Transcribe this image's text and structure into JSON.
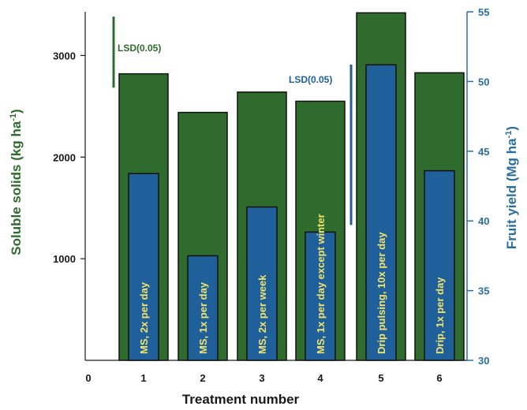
{
  "chart_data": {
    "type": "bar",
    "xlabel": "Treatment number",
    "ylabel_left": "Soluble solids (kg ha-1)",
    "ylabel_right": "Fruit yield (Mg ha-1)",
    "x_ticks": [
      "0",
      "1",
      "2",
      "3",
      "4",
      "5",
      "6"
    ],
    "left_ticks": [
      1000,
      2000,
      3000
    ],
    "right_ticks": [
      30,
      35,
      40,
      45,
      50,
      55
    ],
    "ylim_left": [
      0,
      3430
    ],
    "ylim_right": [
      30,
      55
    ],
    "categories": [
      "1",
      "2",
      "3",
      "4",
      "5",
      "6"
    ],
    "series": [
      {
        "name": "Soluble solids",
        "axis": "left",
        "values": [
          2820,
          2440,
          2640,
          2550,
          3420,
          2830
        ]
      },
      {
        "name": "Fruit yield",
        "axis": "right",
        "values": [
          43.4,
          37.5,
          41.0,
          39.2,
          51.2,
          43.6
        ]
      }
    ],
    "bar_labels": [
      "MS, 2x per day",
      "MS, 1x per day",
      "MS, 2x per week",
      "MS, 1x per day except winter",
      "Drip pulsing, 10x per day",
      "Drip, 1x per day"
    ],
    "lsd": [
      {
        "label": "LSD(0.05)",
        "axis": "left",
        "value": 700
      },
      {
        "label": "LSD(0.05)",
        "axis": "right",
        "value": 11.5
      }
    ],
    "colors": {
      "green_bar": "#2e6b2c",
      "blue_bar": "#1f5f9a",
      "bar_outline": "#111111",
      "right_axis": "#2a6f9e",
      "label_text": "#f2e36b"
    }
  }
}
